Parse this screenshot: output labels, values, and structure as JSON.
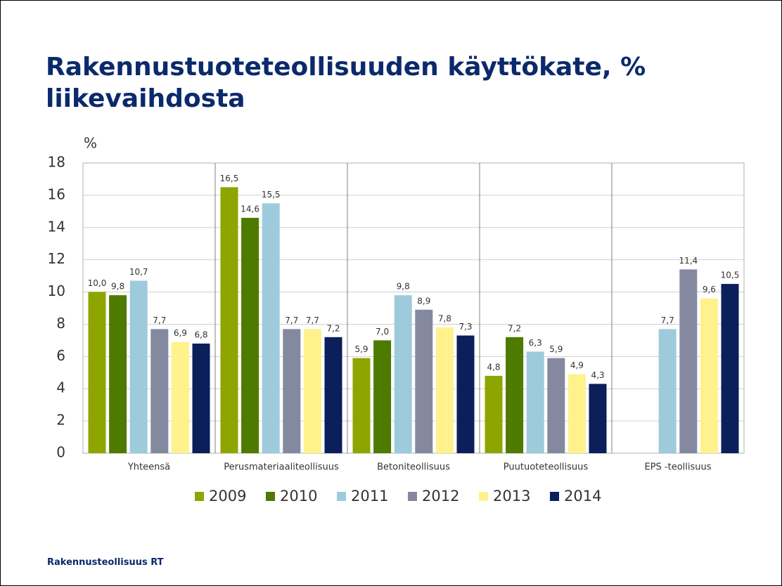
{
  "chart_data": {
    "type": "bar",
    "title": "Rakennustuoteteollisuuden käyttökate, % liikevaihdosta",
    "y_label": "%",
    "categories": [
      "Yhteensä",
      "Perusmateriaaliteollisuus",
      "Betoniteollisuus",
      "Puutuoteteollisuus",
      "EPS -teollisuus"
    ],
    "series": [
      {
        "name": "2009",
        "color": "#8ea500",
        "values": [
          10.0,
          16.5,
          5.9,
          4.8,
          null
        ],
        "value_labels": [
          "10,0",
          "16,5",
          "5,9",
          "4,8",
          null
        ]
      },
      {
        "name": "2010",
        "color": "#4f7a00",
        "values": [
          9.8,
          14.6,
          7.0,
          7.2,
          null
        ],
        "value_labels": [
          "9,8",
          "14,6",
          "7,0",
          "7,2",
          null
        ]
      },
      {
        "name": "2011",
        "color": "#9ecbdb",
        "values": [
          10.7,
          15.5,
          9.8,
          6.3,
          7.7
        ],
        "value_labels": [
          "10,7",
          "15,5",
          "9,8",
          "6,3",
          "7,7"
        ]
      },
      {
        "name": "2012",
        "color": "#84899f",
        "values": [
          7.7,
          7.7,
          8.9,
          5.9,
          11.4
        ],
        "value_labels": [
          "7,7",
          "7,7",
          "8,9",
          "5,9",
          "11,4"
        ]
      },
      {
        "name": "2013",
        "color": "#fff18c",
        "values": [
          6.9,
          7.7,
          7.8,
          4.9,
          9.6
        ],
        "value_labels": [
          "6,9",
          "7,7",
          "7,8",
          "4,9",
          "9,6"
        ]
      },
      {
        "name": "2014",
        "color": "#0b1f5a",
        "values": [
          6.8,
          7.2,
          7.3,
          4.3,
          10.5
        ],
        "value_labels": [
          "6,8",
          "7,2",
          "7,3",
          "4,3",
          "10,5"
        ]
      }
    ],
    "ylim": [
      0,
      18
    ],
    "yticks": [
      0,
      2,
      4,
      6,
      8,
      10,
      12,
      14,
      16,
      18
    ],
    "grid": true,
    "legend": "bottom",
    "source": "Rakennusteollisuus RT"
  }
}
